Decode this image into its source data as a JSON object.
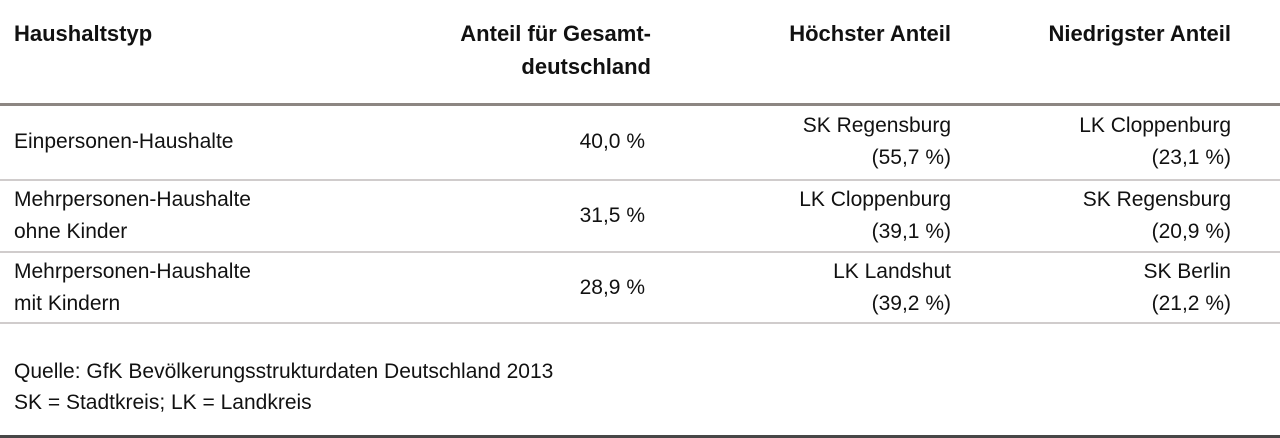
{
  "table": {
    "header": [
      {
        "line1": "Haushaltstyp",
        "line2": ""
      },
      {
        "line1": "Anteil für Gesamt-",
        "line2": "deutschland"
      },
      {
        "line1": "Höchster Anteil",
        "line2": ""
      },
      {
        "line1": "Niedrigster Anteil",
        "line2": ""
      }
    ],
    "rows": [
      {
        "name1": "Einpersonen-Haushalte",
        "name2": "",
        "share": "40,0 %",
        "high_name": "SK Regensburg",
        "high_val": "(55,7 %)",
        "low_name": "LK Cloppenburg",
        "low_val": "(23,1 %)"
      },
      {
        "name1": "Mehrpersonen-Haushalte",
        "name2": "ohne Kinder",
        "share": "31,5 %",
        "high_name": "LK Cloppenburg",
        "high_val": "(39,1 %)",
        "low_name": "SK Regensburg",
        "low_val": "(20,9 %)"
      },
      {
        "name1": "Mehrpersonen-Haushalte",
        "name2": "mit Kindern",
        "share": "28,9 %",
        "high_name": "LK Landshut",
        "high_val": "(39,2 %)",
        "low_name": "SK Berlin",
        "low_val": "(21,2 %)"
      }
    ]
  },
  "footer": {
    "source": "Quelle: GfK Bevölkerungsstrukturdaten Deutschland 2013",
    "legend": "SK = Stadtkreis; LK = Landkreis"
  },
  "colors": {
    "text": "#111111",
    "header_rule": "#8c8682",
    "row_rule": "#d0cccc",
    "bottom_rule": "#474747",
    "background": "#ffffff"
  },
  "chart_data": {
    "type": "table",
    "title": "",
    "columns": [
      "Haushaltstyp",
      "Anteil für Gesamtdeutschland",
      "Höchster Anteil",
      "Niedrigster Anteil"
    ],
    "rows": [
      [
        "Einpersonen-Haushalte",
        "40,0 %",
        "SK Regensburg (55,7 %)",
        "LK Cloppenburg (23,1 %)"
      ],
      [
        "Mehrpersonen-Haushalte ohne Kinder",
        "31,5 %",
        "LK Cloppenburg (39,1 %)",
        "SK Regensburg (20,9 %)"
      ],
      [
        "Mehrpersonen-Haushalte mit Kindern",
        "28,9 %",
        "LK Landshut (39,2 %)",
        "SK Berlin (21,2 %)"
      ]
    ],
    "source": "Quelle: GfK Bevölkerungsstrukturdaten Deutschland 2013",
    "note": "SK = Stadtkreis; LK = Landkreis"
  }
}
